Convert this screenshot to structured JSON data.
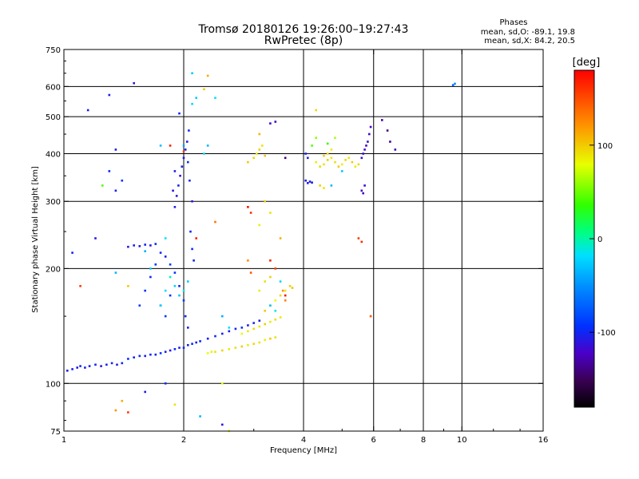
{
  "chart_data": {
    "type": "scatter",
    "title": "Tromsø 20180126 19:26:00–19:27:43",
    "subtitle": "RwPretec (8p)",
    "xlabel": "Frequency [MHz]",
    "ylabel": "Stationary phase Virtual Height [km]",
    "x_scale": "log",
    "y_scale": "log",
    "xlim": [
      1,
      16
    ],
    "ylim": [
      75,
      750
    ],
    "x_ticks": [
      1,
      2,
      4,
      6,
      8,
      10,
      16
    ],
    "x_ticks_labels": [
      "1",
      "2",
      "4",
      "6",
      "8",
      "10",
      "16"
    ],
    "y_ticks": [
      75,
      100,
      200,
      300,
      400,
      500,
      600,
      750
    ],
    "y_ticks_labels": [
      "75",
      "100",
      "200",
      "300",
      "400",
      "500",
      "600",
      "750"
    ],
    "grid": true,
    "stats": {
      "heading": "Phases",
      "line_o": "mean, sd,O: -89.1, 19.8",
      "line_x": "mean, sd,X:  84.2, 20.5"
    },
    "colorbar": {
      "label": "[deg]",
      "range": [
        -180,
        180
      ],
      "ticks": [
        100,
        0,
        -100
      ],
      "ticks_labels": [
        "100",
        "0",
        "-100"
      ]
    },
    "series": [
      {
        "points": [
          [
            1.02,
            108,
            -110
          ],
          [
            1.05,
            109,
            -108
          ],
          [
            1.08,
            110,
            -112
          ],
          [
            1.1,
            111,
            -105
          ],
          [
            1.13,
            110,
            -110
          ],
          [
            1.16,
            111,
            -108
          ],
          [
            1.2,
            112,
            -106
          ],
          [
            1.24,
            111,
            -112
          ],
          [
            1.28,
            112,
            -104
          ],
          [
            1.32,
            113,
            -108
          ],
          [
            1.36,
            112,
            -110
          ],
          [
            1.4,
            113,
            -106
          ],
          [
            1.45,
            116,
            -100
          ],
          [
            1.5,
            117,
            -108
          ],
          [
            1.55,
            118,
            -102
          ],
          [
            1.6,
            118,
            -110
          ],
          [
            1.65,
            119,
            -104
          ],
          [
            1.7,
            119,
            -108
          ],
          [
            1.75,
            120,
            -100
          ],
          [
            1.8,
            121,
            -106
          ],
          [
            1.85,
            122,
            -112
          ],
          [
            1.9,
            123,
            -104
          ],
          [
            1.95,
            124,
            -110
          ],
          [
            2.0,
            124,
            -102
          ],
          [
            2.05,
            126,
            -106
          ],
          [
            2.1,
            127,
            -100
          ],
          [
            2.15,
            128,
            -110
          ],
          [
            2.2,
            129,
            -104
          ],
          [
            2.3,
            131,
            -108
          ],
          [
            2.4,
            133,
            -102
          ],
          [
            2.5,
            135,
            -106
          ],
          [
            2.6,
            137,
            -110
          ],
          [
            2.7,
            139,
            -104
          ],
          [
            2.8,
            140,
            -100
          ],
          [
            2.9,
            142,
            -108
          ],
          [
            3.0,
            144,
            -104
          ],
          [
            3.1,
            146,
            -110
          ],
          [
            1.55,
            160,
            -96
          ],
          [
            1.6,
            175,
            -100
          ],
          [
            1.65,
            190,
            -104
          ],
          [
            1.7,
            205,
            -98
          ],
          [
            1.75,
            220,
            -102
          ],
          [
            1.8,
            215,
            -108
          ],
          [
            1.85,
            205,
            -96
          ],
          [
            1.9,
            195,
            -100
          ],
          [
            1.95,
            180,
            -104
          ],
          [
            2.0,
            165,
            -98
          ],
          [
            2.02,
            150,
            -102
          ],
          [
            2.05,
            140,
            -108
          ],
          [
            1.85,
            170,
            -100
          ],
          [
            1.8,
            150,
            -96
          ],
          [
            1.75,
            160,
            -104
          ],
          [
            1.45,
            228,
            -110
          ],
          [
            1.5,
            230,
            -108
          ],
          [
            1.55,
            229,
            -112
          ],
          [
            1.6,
            231,
            -106
          ],
          [
            1.65,
            230,
            -110
          ],
          [
            1.7,
            232,
            -104
          ],
          [
            1.9,
            290,
            -110
          ],
          [
            1.92,
            310,
            -112
          ],
          [
            1.94,
            330,
            -108
          ],
          [
            1.96,
            350,
            -114
          ],
          [
            1.98,
            370,
            -106
          ],
          [
            2.0,
            390,
            -112
          ],
          [
            2.02,
            410,
            -108
          ],
          [
            2.04,
            430,
            -110
          ],
          [
            2.06,
            460,
            -104
          ],
          [
            1.88,
            320,
            -114
          ],
          [
            1.9,
            360,
            -110
          ],
          [
            2.05,
            380,
            -100
          ],
          [
            2.07,
            340,
            -106
          ],
          [
            2.1,
            300,
            -112
          ],
          [
            2.08,
            250,
            -104
          ],
          [
            2.1,
            225,
            -100
          ],
          [
            2.12,
            210,
            -106
          ],
          [
            1.3,
            570,
            -112
          ],
          [
            1.15,
            520,
            -108
          ],
          [
            1.5,
            612,
            -120
          ],
          [
            1.95,
            510,
            -104
          ],
          [
            1.35,
            410,
            -110
          ],
          [
            1.3,
            360,
            -104
          ],
          [
            1.35,
            320,
            -108
          ],
          [
            1.4,
            340,
            -100
          ],
          [
            1.2,
            240,
            -112
          ],
          [
            1.05,
            220,
            -106
          ],
          [
            4.05,
            340,
            -110
          ],
          [
            4.1,
            335,
            -112
          ],
          [
            4.15,
            338,
            -108
          ],
          [
            4.2,
            336,
            -114
          ],
          [
            4.05,
            400,
            -106
          ],
          [
            4.1,
            390,
            -110
          ],
          [
            5.6,
            320,
            -125
          ],
          [
            5.65,
            315,
            -130
          ],
          [
            5.7,
            330,
            -120
          ],
          [
            5.6,
            390,
            -118
          ],
          [
            5.65,
            400,
            -124
          ],
          [
            5.7,
            410,
            -120
          ],
          [
            5.75,
            420,
            -126
          ],
          [
            5.8,
            430,
            -118
          ],
          [
            5.85,
            450,
            -122
          ],
          [
            5.9,
            470,
            -124
          ],
          [
            9.5,
            605,
            -80
          ],
          [
            9.6,
            610,
            -60
          ],
          [
            6.3,
            490,
            -130
          ],
          [
            6.5,
            460,
            -140
          ],
          [
            6.6,
            430,
            -135
          ],
          [
            6.8,
            410,
            -130
          ],
          [
            3.3,
            480,
            -120
          ],
          [
            3.4,
            485,
            -125
          ],
          [
            3.6,
            390,
            -140
          ],
          [
            1.6,
            95,
            -110
          ],
          [
            1.8,
            100,
            -100
          ],
          [
            2.5,
            78,
            -115
          ]
        ]
      },
      {
        "points": [
          [
            2.3,
            120,
            90
          ],
          [
            2.35,
            121,
            95
          ],
          [
            2.4,
            121,
            100
          ],
          [
            2.5,
            122,
            105
          ],
          [
            2.6,
            123,
            98
          ],
          [
            2.7,
            124,
            102
          ],
          [
            2.8,
            125,
            108
          ],
          [
            2.9,
            126,
            96
          ],
          [
            3.0,
            127,
            104
          ],
          [
            3.1,
            128,
            100
          ],
          [
            3.2,
            130,
            95
          ],
          [
            3.3,
            131,
            110
          ],
          [
            3.4,
            132,
            102
          ],
          [
            2.8,
            135,
            92
          ],
          [
            2.9,
            137,
            98
          ],
          [
            3.0,
            139,
            104
          ],
          [
            3.1,
            141,
            100
          ],
          [
            3.2,
            143,
            108
          ],
          [
            3.3,
            145,
            96
          ],
          [
            3.4,
            147,
            102
          ],
          [
            3.5,
            149,
            98
          ],
          [
            3.2,
            155,
            110
          ],
          [
            3.3,
            160,
            100
          ],
          [
            3.4,
            165,
            92
          ],
          [
            3.5,
            170,
            104
          ],
          [
            3.6,
            175,
            98
          ],
          [
            3.7,
            180,
            106
          ],
          [
            3.75,
            178,
            112
          ],
          [
            3.1,
            175,
            96
          ],
          [
            3.2,
            185,
            102
          ],
          [
            3.3,
            190,
            108
          ],
          [
            2.9,
            380,
            110
          ],
          [
            3.0,
            390,
            104
          ],
          [
            3.05,
            400,
            98
          ],
          [
            3.1,
            410,
            108
          ],
          [
            3.15,
            420,
            100
          ],
          [
            3.2,
            395,
            112
          ],
          [
            3.1,
            450,
            118
          ],
          [
            4.3,
            380,
            96
          ],
          [
            4.4,
            370,
            104
          ],
          [
            4.5,
            375,
            100
          ],
          [
            4.6,
            385,
            108
          ],
          [
            4.7,
            390,
            98
          ],
          [
            4.8,
            380,
            102
          ],
          [
            4.9,
            370,
            110
          ],
          [
            5.0,
            375,
            96
          ],
          [
            5.1,
            385,
            104
          ],
          [
            5.2,
            390,
            100
          ],
          [
            5.3,
            380,
            108
          ],
          [
            5.4,
            370,
            98
          ],
          [
            5.5,
            375,
            104
          ],
          [
            4.5,
            395,
            110
          ],
          [
            4.6,
            400,
            102
          ],
          [
            4.7,
            410,
            96
          ],
          [
            4.4,
            330,
            108
          ],
          [
            4.5,
            325,
            100
          ],
          [
            4.3,
            440,
            60
          ],
          [
            4.2,
            420,
            40
          ],
          [
            4.6,
            425,
            30
          ],
          [
            4.8,
            440,
            70
          ],
          [
            3.2,
            300,
            110
          ],
          [
            3.3,
            280,
            100
          ],
          [
            3.1,
            260,
            96
          ],
          [
            2.9,
            210,
            130
          ],
          [
            2.95,
            195,
            150
          ],
          [
            3.5,
            240,
            120
          ],
          [
            1.45,
            180,
            110
          ],
          [
            1.4,
            90,
            120
          ],
          [
            1.35,
            85,
            130
          ],
          [
            2.4,
            265,
            140
          ],
          [
            2.3,
            640,
            120
          ],
          [
            4.3,
            520,
            105
          ],
          [
            5.5,
            240,
            160
          ],
          [
            5.9,
            150,
            150
          ],
          [
            3.55,
            175,
            130
          ],
          [
            3.6,
            165,
            135
          ],
          [
            2.5,
            100,
            90
          ],
          [
            1.9,
            88,
            100
          ],
          [
            2.6,
            75,
            95
          ],
          [
            1.25,
            330,
            40
          ],
          [
            2.25,
            590,
            110
          ]
        ]
      },
      {
        "points": [
          [
            1.75,
            160,
            -30
          ],
          [
            1.8,
            175,
            -20
          ],
          [
            1.85,
            190,
            -10
          ],
          [
            1.9,
            180,
            -25
          ],
          [
            1.95,
            170,
            -35
          ],
          [
            2.0,
            175,
            -15
          ],
          [
            2.05,
            185,
            -30
          ],
          [
            2.25,
            400,
            -20
          ],
          [
            2.3,
            420,
            -40
          ],
          [
            2.1,
            540,
            -25
          ],
          [
            2.15,
            560,
            -30
          ],
          [
            2.5,
            150,
            -45
          ],
          [
            2.6,
            140,
            -20
          ],
          [
            3.3,
            160,
            -35
          ],
          [
            3.4,
            155,
            -15
          ],
          [
            3.5,
            185,
            -25
          ],
          [
            1.35,
            195,
            -40
          ],
          [
            1.6,
            222,
            -45
          ],
          [
            1.65,
            200,
            -30
          ],
          [
            2.0,
            420,
            -50
          ],
          [
            1.8,
            240,
            -20
          ],
          [
            2.1,
            650,
            -30
          ],
          [
            4.7,
            330,
            -40
          ],
          [
            5.0,
            360,
            -30
          ],
          [
            2.2,
            82,
            -40
          ],
          [
            2.4,
            560,
            -20
          ],
          [
            1.75,
            420,
            -35
          ]
        ]
      },
      {
        "points": [
          [
            1.85,
            420,
            170
          ],
          [
            2.0,
            405,
            160
          ],
          [
            2.9,
            290,
            175
          ],
          [
            2.95,
            280,
            165
          ],
          [
            3.3,
            210,
            170
          ],
          [
            3.4,
            200,
            160
          ],
          [
            3.6,
            170,
            175
          ],
          [
            1.45,
            84,
            160
          ],
          [
            2.15,
            240,
            170
          ],
          [
            5.6,
            235,
            165
          ],
          [
            1.1,
            180,
            160
          ]
        ]
      }
    ]
  }
}
